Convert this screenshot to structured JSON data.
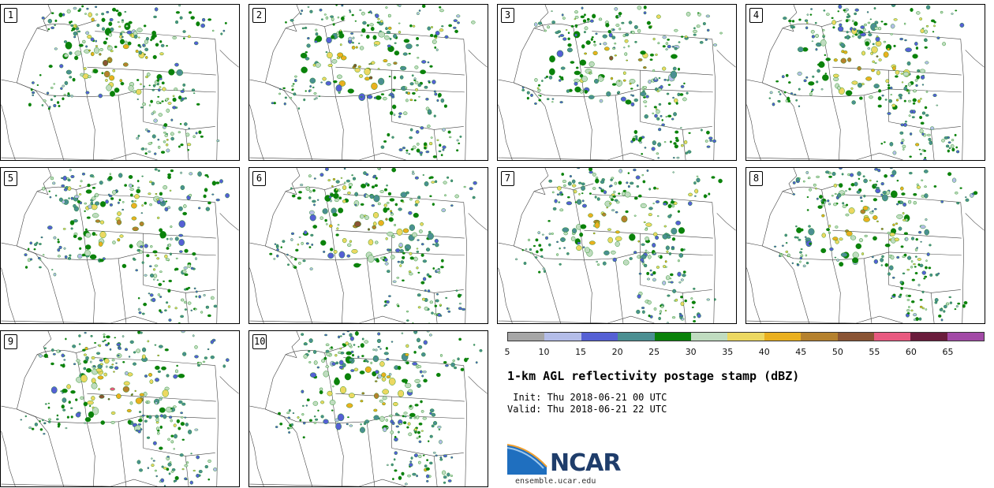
{
  "panels": [
    {
      "label": "1",
      "seed": 11
    },
    {
      "label": "2",
      "seed": 23
    },
    {
      "label": "3",
      "seed": 37
    },
    {
      "label": "4",
      "seed": 41
    },
    {
      "label": "5",
      "seed": 53
    },
    {
      "label": "6",
      "seed": 67
    },
    {
      "label": "7",
      "seed": 71
    },
    {
      "label": "8",
      "seed": 83
    },
    {
      "label": "9",
      "seed": 97
    },
    {
      "label": "10",
      "seed": 101
    }
  ],
  "colorbar": {
    "ticks": [
      "5",
      "10",
      "15",
      "20",
      "25",
      "30",
      "35",
      "40",
      "45",
      "50",
      "55",
      "60",
      "65"
    ],
    "colors": [
      "#a6a6a6",
      "#b4bde8",
      "#5560d4",
      "#4b8f92",
      "#0a820a",
      "#c0dcc0",
      "#ecd862",
      "#eab020",
      "#b5812e",
      "#8a5434",
      "#e85a80",
      "#6a1c3c",
      "#a24aa6"
    ]
  },
  "title": "1-km AGL reflectivity postage stamp (dBZ)",
  "init_line": " Init: Thu 2018-06-21 00 UTC",
  "valid_line": "Valid: Thu 2018-06-21 22 UTC",
  "logo": {
    "text": "NCAR",
    "url": "ensemble.ucar.edu"
  }
}
